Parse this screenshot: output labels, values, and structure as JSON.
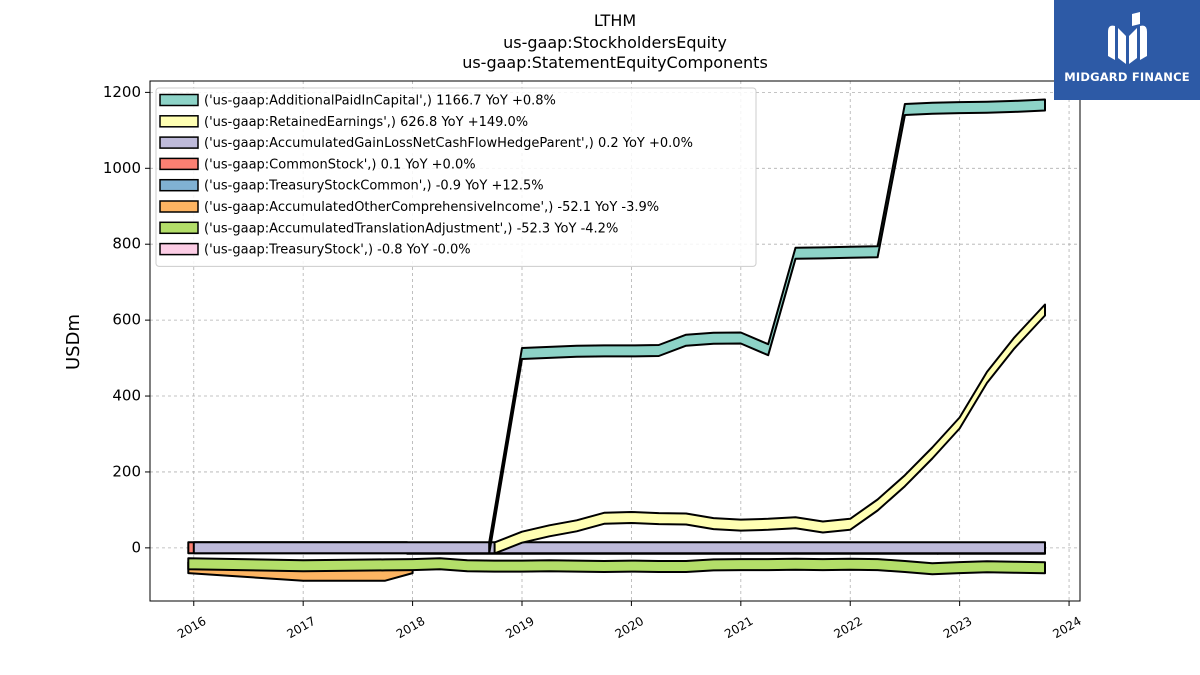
{
  "chart_data": {
    "type": "area",
    "title_lines": [
      "LTHM",
      "us-gaap:StockholdersEquity",
      "us-gaap:StatementEquityComponents"
    ],
    "xlabel": "",
    "ylabel": "USDm",
    "xlim": [
      2015.6,
      2024.1
    ],
    "ylim": [
      -140,
      1230
    ],
    "x_ticks": [
      "2016",
      "2017",
      "2018",
      "2019",
      "2020",
      "2021",
      "2022",
      "2023",
      "2024"
    ],
    "y_ticks": [
      "0",
      "200",
      "400",
      "600",
      "800",
      "1000",
      "1200"
    ],
    "grid": true,
    "legend_position": "upper-left",
    "series": [
      {
        "name": "('us-gaap:AdditionalPaidInCapital',) 1166.7 YoY +0.8%",
        "color": "#8dd3c7",
        "points": [
          [
            2018.7,
            0
          ],
          [
            2019.0,
            512
          ],
          [
            2019.25,
            515
          ],
          [
            2019.5,
            518
          ],
          [
            2019.75,
            519
          ],
          [
            2020.0,
            519
          ],
          [
            2020.25,
            520
          ],
          [
            2020.5,
            547
          ],
          [
            2020.75,
            552
          ],
          [
            2021.0,
            553
          ],
          [
            2021.25,
            522
          ],
          [
            2021.5,
            776
          ],
          [
            2021.75,
            777
          ],
          [
            2022.0,
            779
          ],
          [
            2022.25,
            780
          ],
          [
            2022.5,
            1155
          ],
          [
            2022.75,
            1158
          ],
          [
            2023.0,
            1160
          ],
          [
            2023.25,
            1161
          ],
          [
            2023.5,
            1163
          ],
          [
            2023.78,
            1166.7
          ]
        ]
      },
      {
        "name": "('us-gaap:RetainedEarnings',) 626.8 YoY +149.0%",
        "color": "#ffffb3",
        "points": [
          [
            2018.75,
            0
          ],
          [
            2019.0,
            28
          ],
          [
            2019.25,
            45
          ],
          [
            2019.5,
            58
          ],
          [
            2019.75,
            78
          ],
          [
            2020.0,
            80
          ],
          [
            2020.25,
            77
          ],
          [
            2020.5,
            76
          ],
          [
            2020.75,
            64
          ],
          [
            2021.0,
            60
          ],
          [
            2021.25,
            62
          ],
          [
            2021.5,
            66
          ],
          [
            2021.75,
            55
          ],
          [
            2022.0,
            62
          ],
          [
            2022.25,
            113
          ],
          [
            2022.5,
            177
          ],
          [
            2022.75,
            250
          ],
          [
            2023.0,
            329
          ],
          [
            2023.25,
            449
          ],
          [
            2023.5,
            540
          ],
          [
            2023.78,
            626.8
          ]
        ]
      },
      {
        "name": "('us-gaap:AccumulatedGainLossNetCashFlowHedgeParent',) 0.2 YoY +0.0%",
        "color": "#bebada",
        "points": [
          [
            2016.0,
            0.2
          ],
          [
            2023.78,
            0.2
          ]
        ]
      },
      {
        "name": "('us-gaap:CommonStock',) 0.1 YoY +0.0%",
        "color": "#fb8072",
        "points": [
          [
            2015.95,
            0.1
          ],
          [
            2017.95,
            0.1
          ]
        ]
      },
      {
        "name": "('us-gaap:TreasuryStockCommon',) -0.9 YoY +12.5%",
        "color": "#80b1d3",
        "points": [
          [
            2022.8,
            -0.9
          ],
          [
            2023.78,
            -0.9
          ]
        ]
      },
      {
        "name": "('us-gaap:AccumulatedOtherComprehensiveIncome',) -52.1 YoY -3.9%",
        "color": "#fdb462",
        "points": [
          [
            2015.95,
            -52
          ],
          [
            2017.0,
            -72
          ],
          [
            2017.75,
            -72
          ],
          [
            2018.0,
            -52
          ]
        ]
      },
      {
        "name": "('us-gaap:AccumulatedTranslationAdjustment',) -52.3 YoY -4.2%",
        "color": "#b3de69",
        "points": [
          [
            2015.95,
            -42
          ],
          [
            2017.0,
            -47
          ],
          [
            2017.75,
            -45
          ],
          [
            2018.0,
            -44
          ],
          [
            2018.25,
            -42
          ],
          [
            2018.5,
            -47
          ],
          [
            2018.75,
            -48
          ],
          [
            2019.0,
            -48
          ],
          [
            2019.25,
            -47
          ],
          [
            2019.5,
            -48
          ],
          [
            2019.75,
            -49
          ],
          [
            2020.0,
            -48
          ],
          [
            2020.25,
            -49
          ],
          [
            2020.5,
            -49
          ],
          [
            2020.75,
            -45
          ],
          [
            2021.0,
            -44
          ],
          [
            2021.25,
            -44
          ],
          [
            2021.5,
            -43
          ],
          [
            2021.75,
            -44
          ],
          [
            2022.0,
            -43
          ],
          [
            2022.25,
            -44
          ],
          [
            2022.5,
            -49
          ],
          [
            2022.75,
            -55
          ],
          [
            2023.0,
            -52
          ],
          [
            2023.25,
            -50
          ],
          [
            2023.5,
            -51
          ],
          [
            2023.78,
            -52.3
          ]
        ]
      },
      {
        "name": "('us-gaap:TreasuryStock',) -0.8 YoY -0.0%",
        "color": "#fccde5",
        "points": [
          [
            2017.95,
            -0.8
          ],
          [
            2022.8,
            -0.8
          ]
        ]
      }
    ]
  },
  "logo": {
    "text": "MIDGARD FINANCE",
    "background": "#2d5aa6"
  }
}
